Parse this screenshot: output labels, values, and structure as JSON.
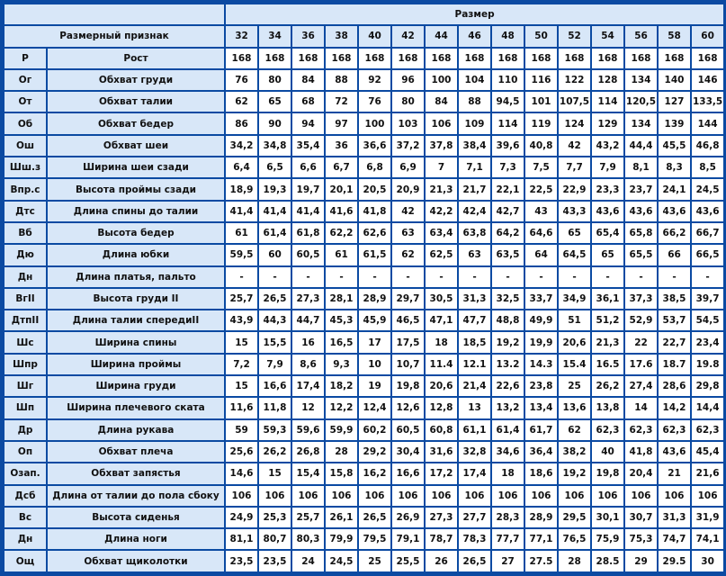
{
  "header": {
    "title": "Размер",
    "label": "Размерный признак",
    "sizes": [
      32,
      34,
      36,
      38,
      40,
      42,
      44,
      46,
      48,
      50,
      52,
      54,
      56,
      58,
      60
    ]
  },
  "rows": [
    {
      "code": "Р",
      "name": "Рост",
      "values": [
        "168",
        "168",
        "168",
        "168",
        "168",
        "168",
        "168",
        "168",
        "168",
        "168",
        "168",
        "168",
        "168",
        "168",
        "168"
      ]
    },
    {
      "code": "Ог",
      "name": "Обхват груди",
      "values": [
        "76",
        "80",
        "84",
        "88",
        "92",
        "96",
        "100",
        "104",
        "110",
        "116",
        "122",
        "128",
        "134",
        "140",
        "146"
      ]
    },
    {
      "code": "От",
      "name": "Обхват талии",
      "values": [
        "62",
        "65",
        "68",
        "72",
        "76",
        "80",
        "84",
        "88",
        "94,5",
        "101",
        "107,5",
        "114",
        "120,5",
        "127",
        "133,5"
      ]
    },
    {
      "code": "Об",
      "name": "Обхват бедер",
      "values": [
        "86",
        "90",
        "94",
        "97",
        "100",
        "103",
        "106",
        "109",
        "114",
        "119",
        "124",
        "129",
        "134",
        "139",
        "144"
      ]
    },
    {
      "code": "Ош",
      "name": "Обхват шеи",
      "values": [
        "34,2",
        "34,8",
        "35,4",
        "36",
        "36,6",
        "37,2",
        "37,8",
        "38,4",
        "39,6",
        "40,8",
        "42",
        "43,2",
        "44,4",
        "45,5",
        "46,8"
      ]
    },
    {
      "code": "Шш.з",
      "name": "Ширина шеи сзади",
      "values": [
        "6,4",
        "6,5",
        "6,6",
        "6,7",
        "6,8",
        "6,9",
        "7",
        "7,1",
        "7,3",
        "7,5",
        "7,7",
        "7,9",
        "8,1",
        "8,3",
        "8,5"
      ]
    },
    {
      "code": "Впр.с",
      "name": "Высота проймы сзади",
      "values": [
        "18,9",
        "19,3",
        "19,7",
        "20,1",
        "20,5",
        "20,9",
        "21,3",
        "21,7",
        "22,1",
        "22,5",
        "22,9",
        "23,3",
        "23,7",
        "24,1",
        "24,5"
      ]
    },
    {
      "code": "Дтс",
      "name": "Длина спины до талии",
      "values": [
        "41,4",
        "41,4",
        "41,4",
        "41,6",
        "41,8",
        "42",
        "42,2",
        "42,4",
        "42,7",
        "43",
        "43,3",
        "43,6",
        "43,6",
        "43,6",
        "43,6"
      ]
    },
    {
      "code": "Вб",
      "name": "Высота бедер",
      "values": [
        "61",
        "61,4",
        "61,8",
        "62,2",
        "62,6",
        "63",
        "63,4",
        "63,8",
        "64,2",
        "64,6",
        "65",
        "65,4",
        "65,8",
        "66,2",
        "66,7"
      ]
    },
    {
      "code": "Дю",
      "name": "Длина юбки",
      "values": [
        "59,5",
        "60",
        "60,5",
        "61",
        "61,5",
        "62",
        "62,5",
        "63",
        "63,5",
        "64",
        "64,5",
        "65",
        "65,5",
        "66",
        "66,5"
      ]
    },
    {
      "code": "Дн",
      "name": "Длина платья, пальто",
      "values": [
        "-",
        "-",
        "-",
        "-",
        "-",
        "-",
        "-",
        "-",
        "-",
        "-",
        "-",
        "-",
        "-",
        "-",
        "-"
      ]
    },
    {
      "code": "ВгII",
      "name": "Высота груди II",
      "values": [
        "25,7",
        "26,5",
        "27,3",
        "28,1",
        "28,9",
        "29,7",
        "30,5",
        "31,3",
        "32,5",
        "33,7",
        "34,9",
        "36,1",
        "37,3",
        "38,5",
        "39,7"
      ]
    },
    {
      "code": "ДтпII",
      "name": "Длина талии спередиII",
      "values": [
        "43,9",
        "44,3",
        "44,7",
        "45,3",
        "45,9",
        "46,5",
        "47,1",
        "47,7",
        "48,8",
        "49,9",
        "51",
        "51,2",
        "52,9",
        "53,7",
        "54,5"
      ]
    },
    {
      "code": "Шс",
      "name": "Ширина спины",
      "values": [
        "15",
        "15,5",
        "16",
        "16,5",
        "17",
        "17,5",
        "18",
        "18,5",
        "19,2",
        "19,9",
        "20,6",
        "21,3",
        "22",
        "22,7",
        "23,4"
      ]
    },
    {
      "code": "Шпр",
      "name": "Ширина проймы",
      "values": [
        "7,2",
        "7,9",
        "8,6",
        "9,3",
        "10",
        "10,7",
        "11.4",
        "12.1",
        "13.2",
        "14.3",
        "15.4",
        "16.5",
        "17.6",
        "18.7",
        "19.8"
      ]
    },
    {
      "code": "Шг",
      "name": "Ширина груди",
      "values": [
        "15",
        "16,6",
        "17,4",
        "18,2",
        "19",
        "19,8",
        "20,6",
        "21,4",
        "22,6",
        "23,8",
        "25",
        "26,2",
        "27,4",
        "28,6",
        "29,8"
      ]
    },
    {
      "code": "Шп",
      "name": "Ширина плечевого ската",
      "values": [
        "11,6",
        "11,8",
        "12",
        "12,2",
        "12,4",
        "12,6",
        "12,8",
        "13",
        "13,2",
        "13,4",
        "13,6",
        "13,8",
        "14",
        "14,2",
        "14,4"
      ]
    },
    {
      "code": "Др",
      "name": "Длина рукава",
      "values": [
        "59",
        "59,3",
        "59,6",
        "59,9",
        "60,2",
        "60,5",
        "60,8",
        "61,1",
        "61,4",
        "61,7",
        "62",
        "62,3",
        "62,3",
        "62,3",
        "62,3"
      ]
    },
    {
      "code": "Оп",
      "name": "Обхват плеча",
      "values": [
        "25,6",
        "26,2",
        "26,8",
        "28",
        "29,2",
        "30,4",
        "31,6",
        "32,8",
        "34,6",
        "36,4",
        "38,2",
        "40",
        "41,8",
        "43,6",
        "45,4"
      ]
    },
    {
      "code": "Озап.",
      "name": "Обхват запястья",
      "values": [
        "14,6",
        "15",
        "15,4",
        "15,8",
        "16,2",
        "16,6",
        "17,2",
        "17,4",
        "18",
        "18,6",
        "19,2",
        "19,8",
        "20,4",
        "21",
        "21,6"
      ]
    },
    {
      "code": "Дсб",
      "name": "Длина от талии до пола сбоку",
      "values": [
        "106",
        "106",
        "106",
        "106",
        "106",
        "106",
        "106",
        "106",
        "106",
        "106",
        "106",
        "106",
        "106",
        "106",
        "106"
      ]
    },
    {
      "code": "Вс",
      "name": "Высота сиденья",
      "values": [
        "24,9",
        "25,3",
        "25,7",
        "26,1",
        "26,5",
        "26,9",
        "27,3",
        "27,7",
        "28,3",
        "28,9",
        "29,5",
        "30,1",
        "30,7",
        "31,3",
        "31,9"
      ]
    },
    {
      "code": "Дн",
      "name": "Длина ноги",
      "values": [
        "81,1",
        "80,7",
        "80,3",
        "79,9",
        "79,5",
        "79,1",
        "78,7",
        "78,3",
        "77,7",
        "77,1",
        "76,5",
        "75,9",
        "75,3",
        "74,7",
        "74,1"
      ]
    },
    {
      "code": "Ощ",
      "name": "Обхват щиколотки",
      "values": [
        "23,5",
        "23,5",
        "24",
        "24,5",
        "25",
        "25,5",
        "26",
        "26,5",
        "27",
        "27.5",
        "28",
        "28.5",
        "29",
        "29.5",
        "30"
      ]
    }
  ]
}
